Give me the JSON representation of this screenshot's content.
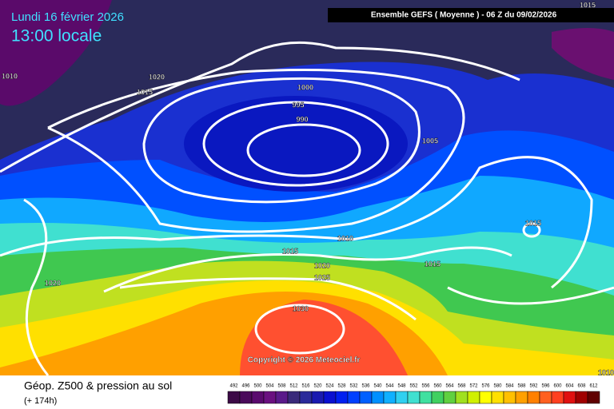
{
  "header": {
    "date": "Lundi 16 février 2026",
    "time": "13:00 locale",
    "run": "Ensemble GEFS  ( Moyenne )  -  06 Z du 09/02/2026"
  },
  "isobar_labels": [
    "1015",
    "1010",
    "1020",
    "1015",
    "1000",
    "995",
    "990",
    "1005",
    "1015",
    "1010",
    "1015",
    "1020",
    "1025",
    "1015",
    "1030",
    "1020",
    "1010"
  ],
  "copyright": "Copyright © 2026 Meteociel.fr",
  "legend": {
    "title": "Géop. Z500 & pression au sol",
    "lead": "(+ 174h)",
    "scale": [
      492,
      496,
      500,
      504,
      508,
      512,
      516,
      520,
      524,
      528,
      532,
      536,
      540,
      544,
      548,
      552,
      556,
      560,
      564,
      568,
      572,
      576,
      580,
      584,
      588,
      592,
      596,
      600,
      604,
      608,
      612
    ],
    "colors": [
      "#3c0a46",
      "#4a0a5a",
      "#5a0a6e",
      "#6a1080",
      "#5a1a8a",
      "#3a2a7a",
      "#2a2a9a",
      "#1a1ab0",
      "#0a10d0",
      "#0020f0",
      "#0040ff",
      "#0060ff",
      "#0090ff",
      "#10b0ff",
      "#30d0f0",
      "#40e0d0",
      "#40e0a0",
      "#40d060",
      "#60d040",
      "#a0e020",
      "#d0f000",
      "#ffff00",
      "#ffe000",
      "#ffc000",
      "#ffa000",
      "#ff8000",
      "#ff6020",
      "#ff4020",
      "#e01010",
      "#a00000",
      "#600000"
    ]
  }
}
